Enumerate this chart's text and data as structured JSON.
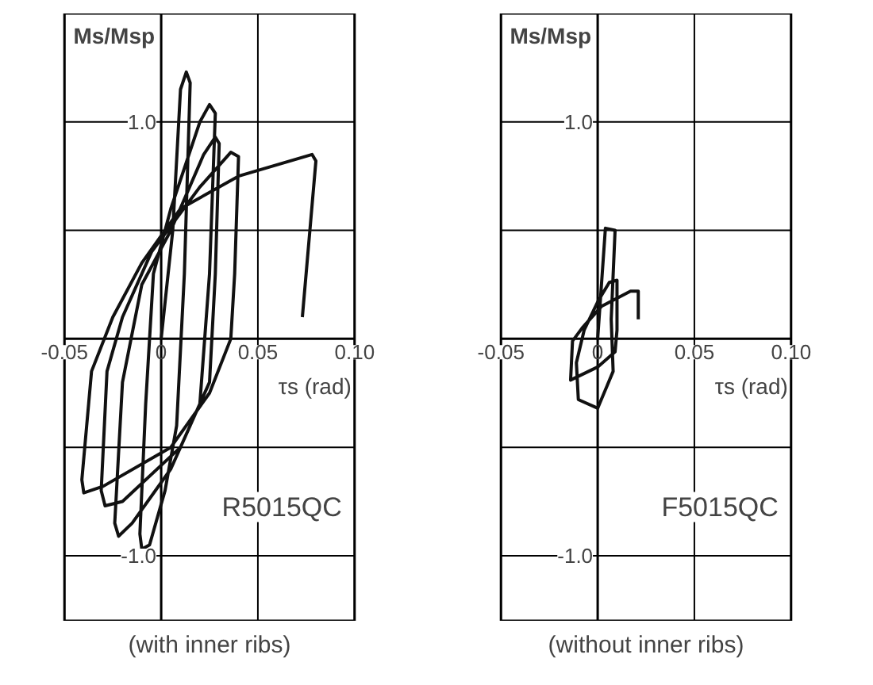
{
  "chart_data": [
    {
      "type": "line",
      "title": "(with inner ribs)",
      "xlabel": "τs (rad)",
      "ylabel": "Ms/Msp",
      "annotations": [
        "R5015QC"
      ],
      "xlim": [
        -0.05,
        0.1
      ],
      "ylim": [
        -1.3,
        1.5
      ],
      "xticks": [
        -0.05,
        0,
        0.05,
        {
          "value": 0.1,
          "label": "0.10"
        }
      ],
      "yticks": [
        {
          "value": -1,
          "label": "-1.0"
        },
        {
          "value": -0.5,
          "label": null
        },
        {
          "value": 0.5,
          "label": null
        },
        {
          "value": 1,
          "label": "1.0"
        }
      ],
      "grid": true,
      "series": [
        {
          "color": "#111111",
          "x": [
            0,
            0.006,
            0.01,
            0.013,
            0.015,
            0.012,
            0.008,
            0.002,
            -0.006,
            -0.01,
            -0.011,
            -0.008,
            -0.004,
            0.005,
            0.02,
            0.025,
            0.028,
            0.025,
            0.02,
            0.005,
            -0.015,
            -0.022,
            -0.024,
            -0.02,
            -0.01,
            0.005,
            0.022,
            0.028,
            0.03,
            0.028,
            0.025,
            0.01,
            -0.02,
            -0.029,
            -0.031,
            -0.028,
            -0.02,
            -0.005,
            0.02,
            0.036,
            0.04,
            0.038,
            0.036,
            0.025,
            0.005,
            -0.03,
            -0.04,
            -0.041,
            -0.036,
            -0.025,
            -0.01,
            0.01,
            0.04,
            0.078,
            0.08,
            0.073
          ],
          "values": [
            0,
            0.5,
            1.15,
            1.23,
            1.18,
            0.3,
            -0.4,
            -0.7,
            -0.95,
            -0.97,
            -0.9,
            -0.3,
            0.3,
            0.6,
            1.0,
            1.08,
            1.04,
            0.3,
            -0.3,
            -0.6,
            -0.85,
            -0.91,
            -0.85,
            -0.2,
            0.25,
            0.5,
            0.85,
            0.93,
            0.9,
            0.3,
            -0.2,
            -0.5,
            -0.75,
            -0.77,
            -0.7,
            -0.15,
            0.1,
            0.4,
            0.7,
            0.86,
            0.84,
            0.3,
            0.0,
            -0.25,
            -0.5,
            -0.68,
            -0.71,
            -0.65,
            -0.15,
            0.1,
            0.35,
            0.6,
            0.75,
            0.85,
            0.82,
            0.1
          ]
        }
      ]
    },
    {
      "type": "line",
      "title": "(without inner ribs)",
      "xlabel": "τs (rad)",
      "ylabel": "Ms/Msp",
      "annotations": [
        "F5015QC"
      ],
      "xlim": [
        -0.05,
        0.1
      ],
      "ylim": [
        -1.3,
        1.5
      ],
      "xticks": [
        -0.05,
        0,
        0.05,
        {
          "value": 0.1,
          "label": "0.10"
        }
      ],
      "yticks": [
        {
          "value": -1,
          "label": "-1.0"
        },
        {
          "value": -0.5,
          "label": null
        },
        {
          "value": 0.5,
          "label": null
        },
        {
          "value": 1,
          "label": "1.0"
        }
      ],
      "grid": true,
      "series": [
        {
          "color": "#111111",
          "x": [
            0,
            0.004,
            0.009,
            0.007,
            0.008,
            0,
            -0.01,
            -0.011,
            -0.007,
            0,
            0.006,
            0.01,
            0.01,
            0.009,
            0,
            -0.014,
            -0.013,
            -0.008,
            0.002,
            0.017,
            0.021,
            0.021
          ],
          "values": [
            0,
            0.51,
            0.5,
            0.09,
            -0.15,
            -0.32,
            -0.28,
            -0.11,
            0.04,
            0.17,
            0.26,
            0.27,
            0.04,
            -0.06,
            -0.13,
            -0.19,
            -0.01,
            0.05,
            0.15,
            0.22,
            0.22,
            0.09
          ]
        }
      ]
    }
  ]
}
